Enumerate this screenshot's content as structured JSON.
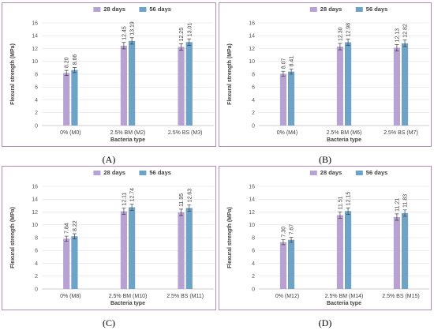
{
  "colors": {
    "days28": "#b8a1d3",
    "days56": "#6ea3c8",
    "frame": "#b58ab8"
  },
  "chart_data": [
    {
      "type": "bar",
      "panel_label": "(A)",
      "categories": [
        "0% (M0)",
        "2.5% BM (M2)",
        "2.5% BS (M3)"
      ],
      "series": [
        {
          "name": "28 days",
          "values": [
            8.2,
            12.45,
            12.25
          ]
        },
        {
          "name": "56 days",
          "values": [
            8.66,
            13.19,
            13.01
          ]
        }
      ],
      "value_labels": [
        [
          "8.20",
          "12.45",
          "12.25"
        ],
        [
          "8.66",
          "13.19",
          "13.01"
        ]
      ],
      "error": [
        [
          0.4,
          0.5,
          0.5
        ],
        [
          0.4,
          0.5,
          0.5
        ]
      ],
      "xlabel": "Bacteria type",
      "ylabel": "Flexural  strength (MPa)",
      "ylim": [
        0,
        16
      ],
      "yticks": [
        0,
        2,
        4,
        6,
        8,
        10,
        12,
        14,
        16
      ],
      "grid": true,
      "legend": "top-center"
    },
    {
      "type": "bar",
      "panel_label": "(B)",
      "categories": [
        "0% (M4)",
        "2.5% BM (M6)",
        "2.5% BS (M7)"
      ],
      "series": [
        {
          "name": "28 days",
          "values": [
            8.07,
            12.3,
            12.13
          ]
        },
        {
          "name": "56 days",
          "values": [
            8.41,
            12.98,
            12.82
          ]
        }
      ],
      "value_labels": [
        [
          "8.07",
          "12.30",
          "12.13"
        ],
        [
          "8.41",
          "12.98",
          "12.82"
        ]
      ],
      "error": [
        [
          0.4,
          0.5,
          0.5
        ],
        [
          0.4,
          0.5,
          0.5
        ]
      ],
      "xlabel": "Bacteria type",
      "ylabel": "Flexural  strength (MPa)",
      "ylim": [
        0,
        16
      ],
      "yticks": [
        0,
        2,
        4,
        6,
        8,
        10,
        12,
        14,
        16
      ],
      "grid": true,
      "legend": "top-center"
    },
    {
      "type": "bar",
      "panel_label": "(C)",
      "categories": [
        "0% (M8)",
        "2.5% BM (M10)",
        "2.5% BS (M11)"
      ],
      "series": [
        {
          "name": "28 days",
          "values": [
            7.84,
            12.11,
            11.95
          ]
        },
        {
          "name": "56 days",
          "values": [
            8.22,
            12.74,
            12.63
          ]
        }
      ],
      "value_labels": [
        [
          "7.84",
          "12.11",
          "11.95"
        ],
        [
          "8.22",
          "12.74",
          "12.63"
        ]
      ],
      "error": [
        [
          0.4,
          0.5,
          0.5
        ],
        [
          0.4,
          0.5,
          0.5
        ]
      ],
      "xlabel": "Bacteria type",
      "ylabel": "Flexural  strength (MPa)",
      "ylim": [
        0,
        16
      ],
      "yticks": [
        0,
        2,
        4,
        6,
        8,
        10,
        12,
        14,
        16
      ],
      "grid": true,
      "legend": "top-center"
    },
    {
      "type": "bar",
      "panel_label": "(D)",
      "categories": [
        "0% (M12)",
        "2.5% BM (M14)",
        "2.5% BS (M15)"
      ],
      "series": [
        {
          "name": "28 days",
          "values": [
            7.3,
            11.51,
            11.21
          ]
        },
        {
          "name": "56 days",
          "values": [
            7.67,
            12.15,
            11.83
          ]
        }
      ],
      "value_labels": [
        [
          "7.30",
          "11.51",
          "11.21"
        ],
        [
          "7.67",
          "12.15",
          "11.83"
        ]
      ],
      "error": [
        [
          0.4,
          0.5,
          0.5
        ],
        [
          0.4,
          0.5,
          0.5
        ]
      ],
      "xlabel": "Bacteria type",
      "ylabel": "Flexural  strength (MPa)",
      "ylim": [
        0,
        16
      ],
      "yticks": [
        0,
        2,
        4,
        6,
        8,
        10,
        12,
        14,
        16
      ],
      "grid": true,
      "legend": "top-center"
    }
  ]
}
